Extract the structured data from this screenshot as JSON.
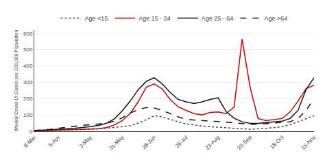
{
  "chart_data": {
    "type": "line",
    "categories": [
      "8-Mar",
      null,
      null,
      "5-Apr",
      null,
      null,
      null,
      "3-May",
      null,
      null,
      null,
      "31-May",
      null,
      null,
      null,
      "28-Jun",
      null,
      null,
      null,
      "26-Jul",
      null,
      null,
      null,
      "23-Aug",
      null,
      null,
      null,
      "20-Sep",
      null,
      null,
      null,
      "18-Oct",
      null,
      null,
      null,
      "15-Nov"
    ],
    "series": [
      {
        "name": "Age <15",
        "color": "#444444",
        "line_style": "dotted",
        "values": [
          2,
          3,
          4,
          5,
          6,
          8,
          10,
          12,
          14,
          18,
          22,
          28,
          35,
          50,
          70,
          95,
          88,
          72,
          58,
          45,
          38,
          32,
          28,
          25,
          22,
          18,
          15,
          12,
          15,
          18,
          22,
          28,
          40,
          58,
          75,
          95
        ]
      },
      {
        "name": "Age 15 - 24",
        "color": "#cc0000",
        "line_style": "solid",
        "values": [
          2,
          3,
          4,
          5,
          7,
          10,
          12,
          14,
          16,
          22,
          38,
          65,
          110,
          180,
          270,
          290,
          260,
          195,
          150,
          128,
          108,
          100,
          115,
          118,
          108,
          148,
          565,
          270,
          78,
          65,
          72,
          78,
          118,
          185,
          260,
          282
        ]
      },
      {
        "name": "Age 25 - 64",
        "color": "#111111",
        "line_style": "solid",
        "values": [
          4,
          6,
          8,
          12,
          15,
          18,
          22,
          28,
          36,
          48,
          75,
          125,
          185,
          255,
          305,
          328,
          290,
          238,
          195,
          180,
          170,
          180,
          195,
          205,
          120,
          80,
          58,
          48,
          48,
          52,
          58,
          62,
          78,
          128,
          255,
          328
        ]
      },
      {
        "name": "Age >64",
        "color": "#111111",
        "line_style": "dashed",
        "values": [
          5,
          8,
          12,
          18,
          25,
          32,
          36,
          40,
          44,
          48,
          62,
          82,
          112,
          132,
          145,
          142,
          128,
          108,
          88,
          72,
          68,
          65,
          62,
          60,
          55,
          50,
          46,
          43,
          43,
          46,
          50,
          54,
          58,
          78,
          128,
          198
        ]
      }
    ],
    "y_label": "Weekly Covid-19 Cases per 100,000 Population",
    "ylim": [
      0,
      620
    ],
    "yticks": [
      0,
      100,
      200,
      300,
      400,
      500,
      600
    ],
    "grid": true,
    "legend": "top"
  }
}
